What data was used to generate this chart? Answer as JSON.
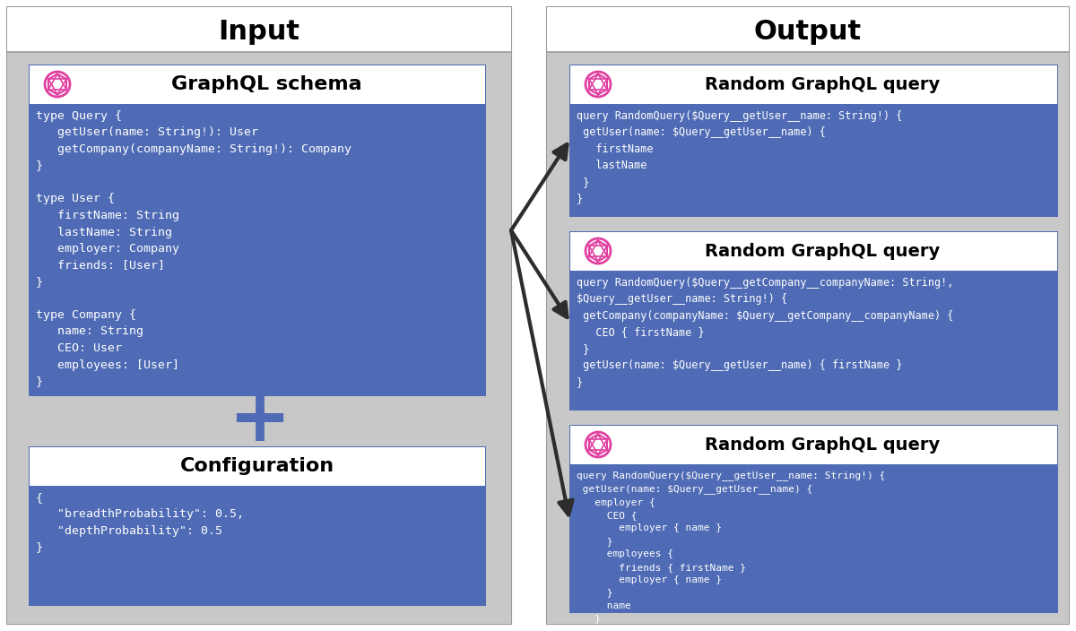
{
  "bg_color": "#ffffff",
  "outer_border_color": "#999999",
  "panel_bg": "#c8c8c8",
  "title_bar_bg": "#ffffff",
  "title_bar_border": "#999999",
  "box_header_bg": "#ffffff",
  "box_body_bg": "#4f6bb5",
  "box_border_color": "#4f6bb5",
  "title_color": "#000000",
  "header_text_color": "#000000",
  "body_text_color": "#ffffff",
  "arrow_color": "#2d2d2d",
  "plus_color": "#4f6bb5",
  "graphql_icon_color": "#e040a0",
  "input_title": "Input",
  "output_title": "Output",
  "schema_header": "GraphQL schema",
  "schema_body": "type Query {\n   getUser(name: String!): User\n   getCompany(companyName: String!): Company\n}\n\ntype User {\n   firstName: String\n   lastName: String\n   employer: Company\n   friends: [User]\n}\n\ntype Company {\n   name: String\n   CEO: User\n   employees: [User]\n}",
  "config_header": "Configuration",
  "config_body": "{\n   \"breadthProbability\": 0.5,\n   \"depthProbability\": 0.5\n}",
  "query1_header": "Random GraphQL query",
  "query1_body": "query RandomQuery($Query__getUser__name: String!) {\n getUser(name: $Query__getUser__name) {\n   firstName\n   lastName\n }\n}",
  "query2_header": "Random GraphQL query",
  "query2_body": "query RandomQuery($Query__getCompany__companyName: String!,\n$Query__getUser__name: String!) {\n getCompany(companyName: $Query__getCompany__companyName) {\n   CEO { firstName }\n }\n getUser(name: $Query__getUser__name) { firstName }\n}",
  "query3_header": "Random GraphQL query",
  "query3_body": "query RandomQuery($Query__getUser__name: String!) {\n getUser(name: $Query__getUser__name) {\n   employer {\n     CEO {\n       employer { name }\n     }\n     employees {\n       friends { firstName }\n       employer { name }\n     }\n     name\n   }\n   firstName\n }\n}"
}
